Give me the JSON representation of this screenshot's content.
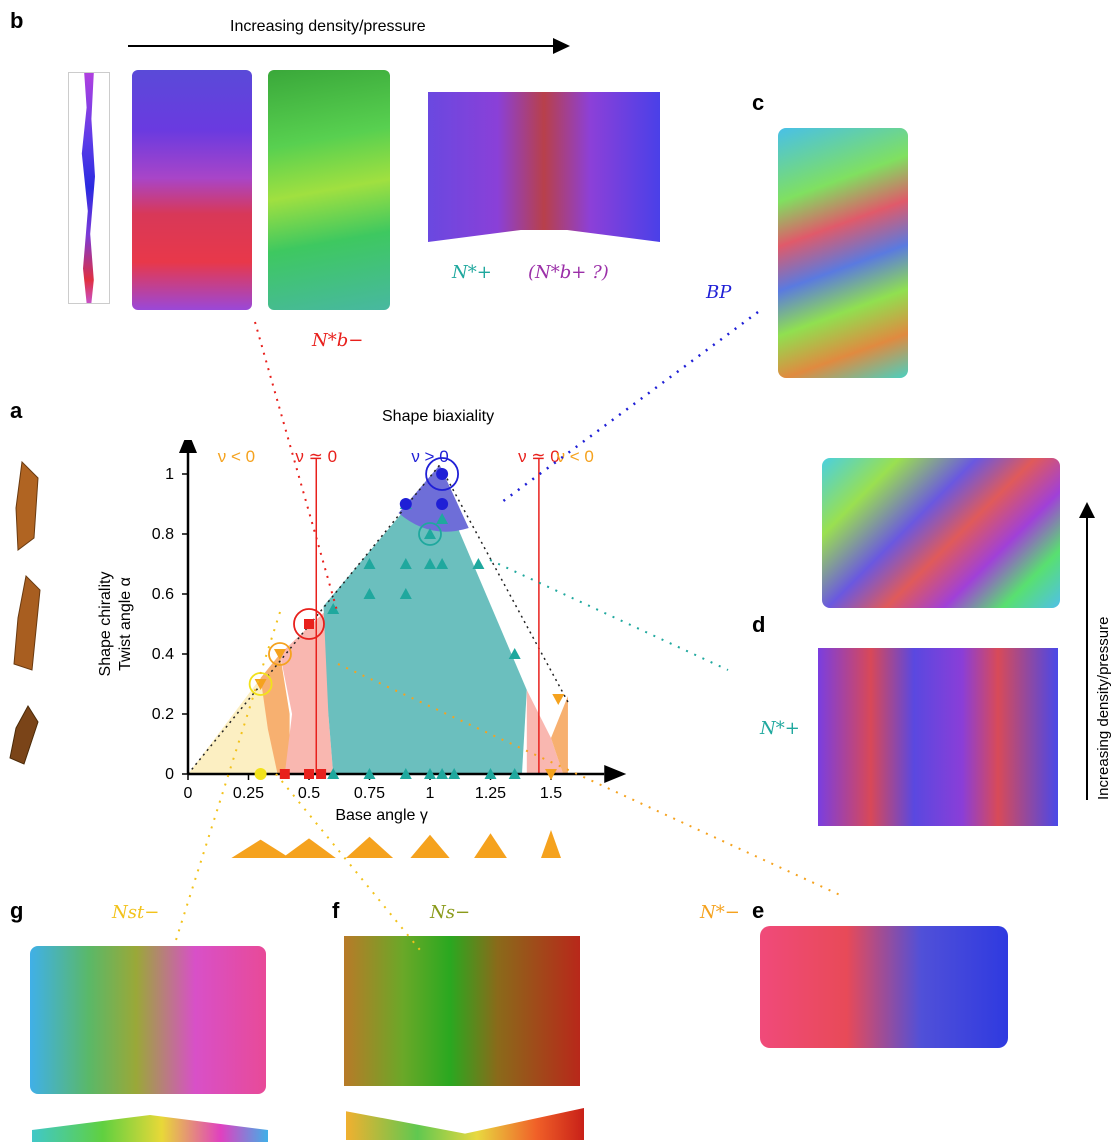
{
  "panels": {
    "a": "a",
    "b": "b",
    "c": "c",
    "d": "d",
    "e": "e",
    "f": "f",
    "g": "g"
  },
  "top_arrow_label": "Increasing density/pressure",
  "right_arrow_label": "Increasing density/pressure",
  "shape_biaxiality": "Shape biaxiality",
  "phases": {
    "nb_plus_label": "N*+",
    "nbp_label": "(N*b+ ?)",
    "nb_minus_label": "N*b−",
    "bp_label": "BP",
    "d_label": "N*+",
    "e_label": "N*−",
    "f_label": "Ns−",
    "g_label": "Nst−"
  },
  "colors": {
    "orange": "#F5A21E",
    "red": "#E8201C",
    "blue": "#1F1FD6",
    "teal": "#1FA89E",
    "yellow": "#F2E21B",
    "purple": "#9B2FA8",
    "teal_fill": "#6BBFBE",
    "pink_fill": "#F9B7B0",
    "yellow_fill": "#FCEFC2",
    "blue_fill": "#6E6ED8",
    "orange_fill": "#F7B070"
  },
  "chart_data": {
    "type": "scatter",
    "xlabel": "Base angle γ",
    "ylabel_top": "Shape chirality",
    "ylabel": "Twist angle α",
    "xticks": [
      "0",
      "0.25",
      "0.5",
      "0.75",
      "1",
      "1.25",
      "1.5"
    ],
    "yticks": [
      "0",
      "0.2",
      "0.4",
      "0.6",
      "0.8",
      "1"
    ],
    "xlim": [
      0,
      1.57
    ],
    "ylim": [
      0,
      1.05
    ],
    "region_labels": [
      "ν < 0",
      "ν ≃ 0",
      "ν > 0",
      "ν ≃ 0",
      "ν < 0"
    ],
    "series": [
      {
        "marker": "triangle",
        "color": "#1FA89E",
        "points": [
          [
            0.6,
            0
          ],
          [
            0.75,
            0
          ],
          [
            0.9,
            0
          ],
          [
            1.0,
            0
          ],
          [
            1.05,
            0
          ],
          [
            1.1,
            0
          ],
          [
            1.25,
            0
          ],
          [
            1.35,
            0
          ],
          [
            0.6,
            0.55
          ],
          [
            0.75,
            0.6
          ],
          [
            0.9,
            0.6
          ],
          [
            0.75,
            0.7
          ],
          [
            0.9,
            0.7
          ],
          [
            1.0,
            0.7
          ],
          [
            1.05,
            0.7
          ],
          [
            1.0,
            0.8
          ],
          [
            1.2,
            0.7
          ],
          [
            0.9,
            0.9
          ],
          [
            1.35,
            0.4
          ],
          [
            1.05,
            0.85
          ]
        ]
      },
      {
        "marker": "circle",
        "color": "#1F1FD6",
        "points": [
          [
            0.9,
            0.9
          ],
          [
            1.05,
            0.9
          ],
          [
            1.05,
            1.0
          ]
        ]
      },
      {
        "marker": "square",
        "color": "#E8201C",
        "points": [
          [
            0.4,
            0
          ],
          [
            0.5,
            0
          ],
          [
            0.55,
            0
          ],
          [
            0.5,
            0.5
          ]
        ]
      },
      {
        "marker": "triangle-down",
        "color": "#F5A21E",
        "points": [
          [
            0.3,
            0.3
          ],
          [
            0.38,
            0.4
          ],
          [
            1.5,
            0
          ],
          [
            1.53,
            0.25
          ]
        ]
      },
      {
        "marker": "circle",
        "color": "#F2E21B",
        "points": [
          [
            0.3,
            0
          ]
        ]
      }
    ]
  }
}
